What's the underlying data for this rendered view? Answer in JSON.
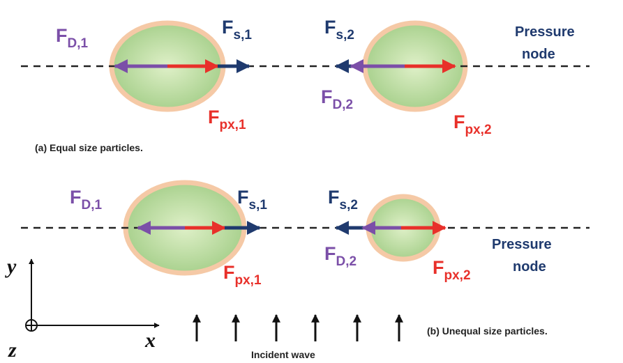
{
  "panel_a": {
    "labels": [
      {
        "main": "F",
        "sub": "D,1"
      },
      {
        "main": "F",
        "sub": "s,1"
      },
      {
        "main": "F",
        "sub": "s,2"
      },
      {
        "main": "F",
        "sub": "D,2"
      },
      {
        "main": "F",
        "sub": "px,1"
      },
      {
        "main": "F",
        "sub": "px,2"
      }
    ],
    "node_label": [
      "Pressure",
      "node"
    ],
    "caption": "(a) Equal size particles."
  },
  "panel_b": {
    "labels": [
      {
        "main": "F",
        "sub": "D,1"
      },
      {
        "main": "F",
        "sub": "s,1"
      },
      {
        "main": "F",
        "sub": "s,2"
      },
      {
        "main": "F",
        "sub": "D,2"
      },
      {
        "main": "F",
        "sub": "px,1"
      },
      {
        "main": "F",
        "sub": "px,2"
      }
    ],
    "node_label": [
      "Pressure",
      "node"
    ],
    "caption": "(b) Unequal size particles."
  },
  "axes": {
    "y": "y",
    "x": "x",
    "z": "z"
  },
  "incident_label": "Incident wave"
}
